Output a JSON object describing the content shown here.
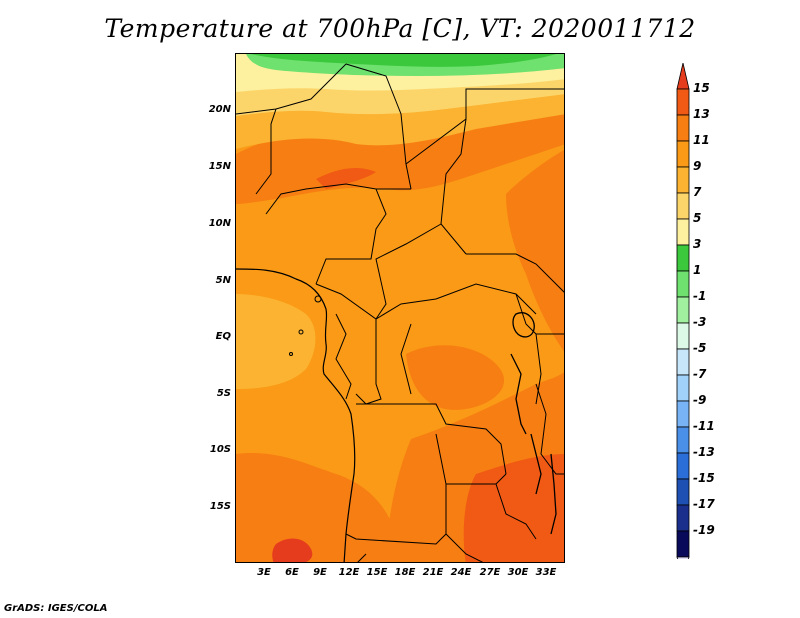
{
  "title": "Temperature at 700hPa [C], VT: 2020011712",
  "credit": "GrADS: IGES/COLA",
  "lat_ticks": [
    "20N",
    "15N",
    "10N",
    "5N",
    "EQ",
    "5S",
    "10S",
    "15S"
  ],
  "lon_ticks": [
    "3E",
    "6E",
    "9E",
    "12E",
    "15E",
    "18E",
    "21E",
    "24E",
    "27E",
    "30E",
    "33E"
  ],
  "colorbar": {
    "labels": [
      "15",
      "13",
      "11",
      "9",
      "7",
      "5",
      "3",
      "1",
      "-1",
      "-3",
      "-5",
      "-7",
      "-9",
      "-11",
      "-13",
      "-15",
      "-17",
      "-19"
    ],
    "colors_top_to_bottom": [
      "#e63c1e",
      "#f05a14",
      "#f77e12",
      "#fa9a16",
      "#fbb331",
      "#fcd56a",
      "#fdf09e",
      "#3cc83c",
      "#6ee16e",
      "#a0f0a0",
      "#dcf8e6",
      "#c8e6fa",
      "#a0d2fa",
      "#78b4f5",
      "#4a90e8",
      "#2c6ed8",
      "#1e50b4",
      "#1a2e8c",
      "#0a0a5a",
      "#dcdcf5"
    ]
  },
  "map_colors": {
    "cold_green": "#3cc83c",
    "light_green": "#6ee16e",
    "pale_yellow": "#fdf09e",
    "yellow": "#fcd56a",
    "light_orange": "#fbb331",
    "orange": "#fa9a16",
    "dark_orange": "#f77e12",
    "red_orange": "#f05a14",
    "red": "#e63c1e"
  }
}
